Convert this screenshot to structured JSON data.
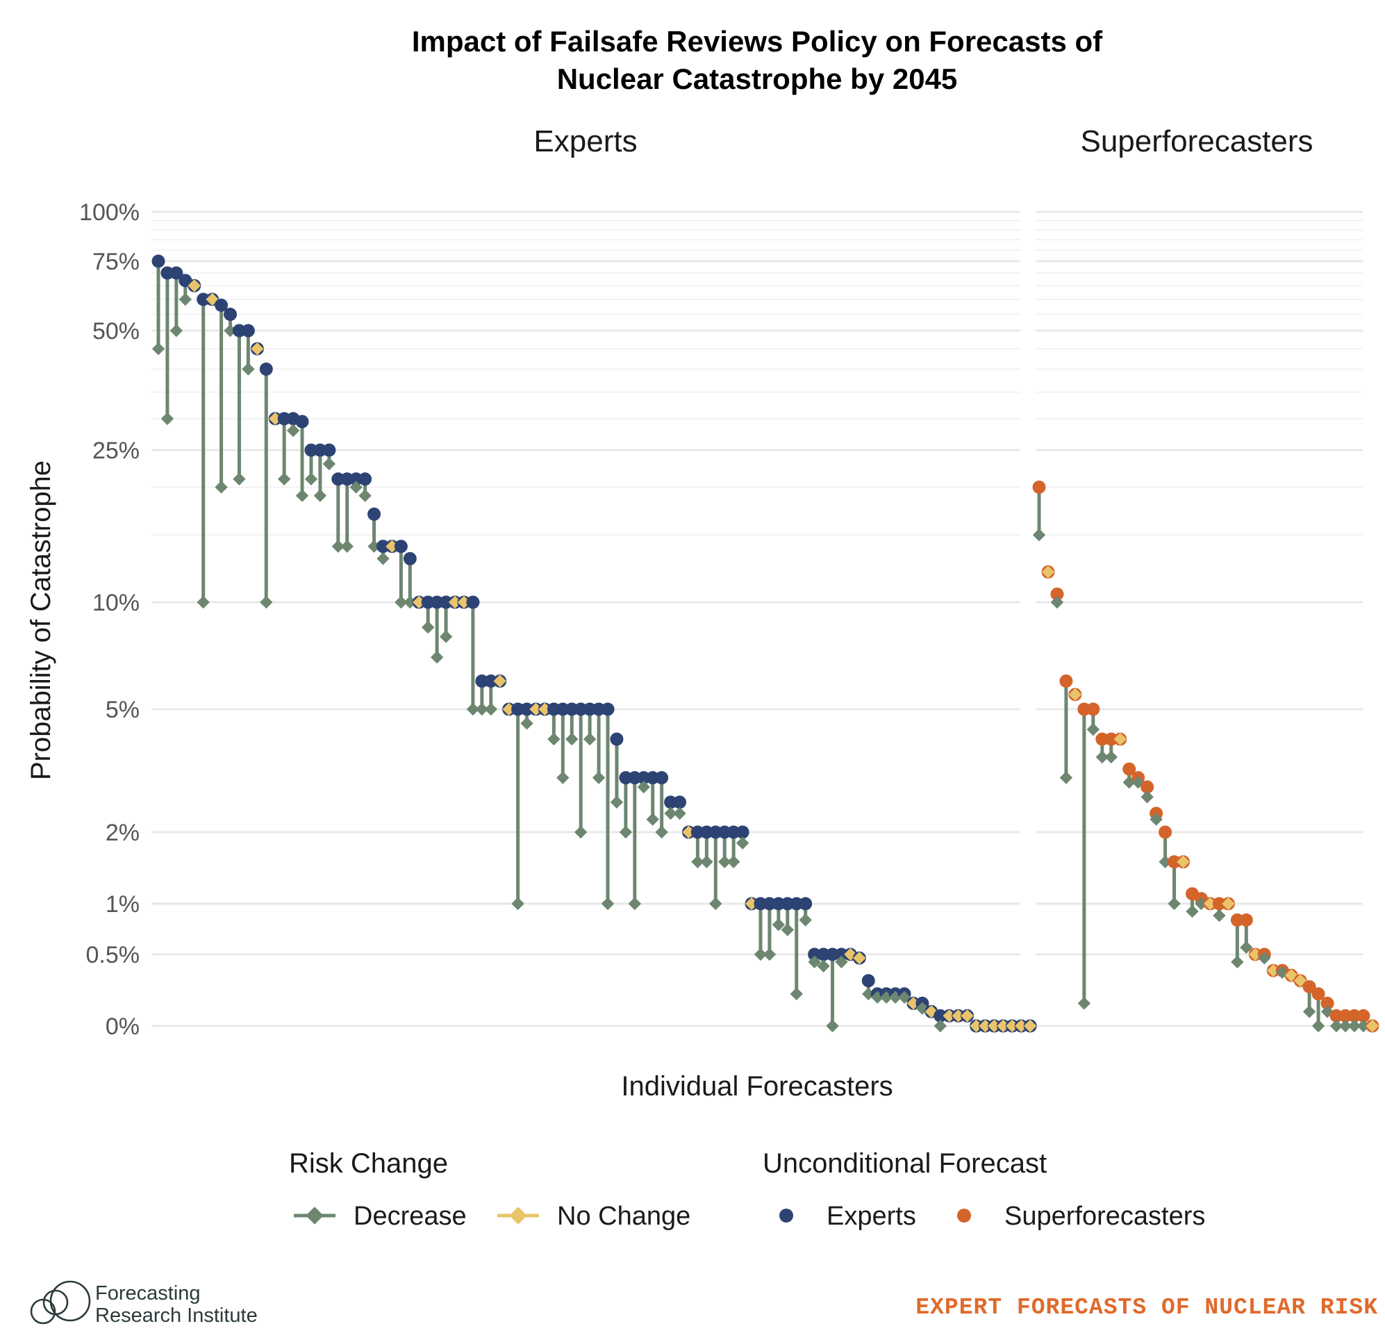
{
  "colors": {
    "decrease": "#6d8670",
    "no_change": "#e9c46a",
    "experts": "#2d4373",
    "superforecasters": "#d4642a",
    "source": "#e06a2c"
  },
  "chart_data": {
    "type": "dumbbell",
    "title_lines": [
      "Impact of Failsafe Reviews Policy on Forecasts of",
      "Nuclear Catastrophe by 2045"
    ],
    "xlabel": "Individual Forecasters",
    "ylabel": "Probability of Catastrophe",
    "y_scale": "transformed (compressed near 0)",
    "yticks": [
      {
        "value": 0,
        "label": "0%"
      },
      {
        "value": 0.5,
        "label": "0.5%"
      },
      {
        "value": 1,
        "label": "1%"
      },
      {
        "value": 2,
        "label": "2%"
      },
      {
        "value": 5,
        "label": "5%"
      },
      {
        "value": 10,
        "label": "10%"
      },
      {
        "value": 25,
        "label": "25%"
      },
      {
        "value": 50,
        "label": "50%"
      },
      {
        "value": 75,
        "label": "75%"
      },
      {
        "value": 100,
        "label": "100%"
      }
    ],
    "ylim": [
      0,
      100
    ],
    "grid": true,
    "legend_position": "bottom",
    "legend": {
      "risk_change": {
        "title": "Risk Change",
        "items": [
          "Decrease",
          "No Change"
        ]
      },
      "unconditional": {
        "title": "Unconditional Forecast",
        "items": [
          "Experts",
          "Superforecasters"
        ]
      }
    },
    "panels": [
      {
        "name": "Experts",
        "unconditional_series": "Experts",
        "forecasters": [
          {
            "u": 75,
            "c": 45
          },
          {
            "u": 70,
            "c": 30
          },
          {
            "u": 70,
            "c": 50
          },
          {
            "u": 67,
            "c": 60
          },
          {
            "u": 65,
            "c": 65
          },
          {
            "u": 60,
            "c": 10
          },
          {
            "u": 60,
            "c": 60
          },
          {
            "u": 58,
            "c": 20
          },
          {
            "u": 55,
            "c": 50
          },
          {
            "u": 50,
            "c": 21
          },
          {
            "u": 50,
            "c": 40
          },
          {
            "u": 45,
            "c": 45
          },
          {
            "u": 40,
            "c": 10
          },
          {
            "u": 30,
            "c": 30
          },
          {
            "u": 30,
            "c": 21
          },
          {
            "u": 30,
            "c": 28
          },
          {
            "u": 29.5,
            "c": 19
          },
          {
            "u": 25,
            "c": 21
          },
          {
            "u": 25,
            "c": 19
          },
          {
            "u": 25,
            "c": 23
          },
          {
            "u": 21,
            "c": 14
          },
          {
            "u": 21,
            "c": 14
          },
          {
            "u": 21,
            "c": 20
          },
          {
            "u": 21,
            "c": 19
          },
          {
            "u": 17,
            "c": 14
          },
          {
            "u": 14,
            "c": 13
          },
          {
            "u": 14,
            "c": 14
          },
          {
            "u": 14,
            "c": 10
          },
          {
            "u": 13,
            "c": 10
          },
          {
            "u": 10,
            "c": 10
          },
          {
            "u": 10,
            "c": 8.5
          },
          {
            "u": 10,
            "c": 7
          },
          {
            "u": 10,
            "c": 8
          },
          {
            "u": 10,
            "c": 10
          },
          {
            "u": 10,
            "c": 10
          },
          {
            "u": 10,
            "c": 5
          },
          {
            "u": 6,
            "c": 5
          },
          {
            "u": 6,
            "c": 5
          },
          {
            "u": 6,
            "c": 6
          },
          {
            "u": 5,
            "c": 5
          },
          {
            "u": 5,
            "c": 1
          },
          {
            "u": 5,
            "c": 4.5
          },
          {
            "u": 5,
            "c": 5
          },
          {
            "u": 5,
            "c": 5
          },
          {
            "u": 5,
            "c": 4
          },
          {
            "u": 5,
            "c": 3
          },
          {
            "u": 5,
            "c": 4
          },
          {
            "u": 5,
            "c": 2
          },
          {
            "u": 5,
            "c": 4
          },
          {
            "u": 5,
            "c": 3
          },
          {
            "u": 5,
            "c": 1
          },
          {
            "u": 4,
            "c": 2.5
          },
          {
            "u": 3,
            "c": 2
          },
          {
            "u": 3,
            "c": 1
          },
          {
            "u": 3,
            "c": 2.8
          },
          {
            "u": 3,
            "c": 2.2
          },
          {
            "u": 3,
            "c": 2
          },
          {
            "u": 2.5,
            "c": 2.3
          },
          {
            "u": 2.5,
            "c": 2.3
          },
          {
            "u": 2,
            "c": 2
          },
          {
            "u": 2,
            "c": 1.5
          },
          {
            "u": 2,
            "c": 1.5
          },
          {
            "u": 2,
            "c": 1
          },
          {
            "u": 2,
            "c": 1.5
          },
          {
            "u": 2,
            "c": 1.5
          },
          {
            "u": 2,
            "c": 1.8
          },
          {
            "u": 1,
            "c": 1
          },
          {
            "u": 1,
            "c": 0.5
          },
          {
            "u": 1,
            "c": 0.5
          },
          {
            "u": 1,
            "c": 0.75
          },
          {
            "u": 1,
            "c": 0.7
          },
          {
            "u": 1,
            "c": 0.1
          },
          {
            "u": 1,
            "c": 0.8
          },
          {
            "u": 0.5,
            "c": 0.4
          },
          {
            "u": 0.5,
            "c": 0.35
          },
          {
            "u": 0.5,
            "c": 0
          },
          {
            "u": 0.5,
            "c": 0.4
          },
          {
            "u": 0.5,
            "c": 0.5
          },
          {
            "u": 0.45,
            "c": 0.45
          },
          {
            "u": 0.2,
            "c": 0.1
          },
          {
            "u": 0.1,
            "c": 0.08
          },
          {
            "u": 0.1,
            "c": 0.08
          },
          {
            "u": 0.1,
            "c": 0.08
          },
          {
            "u": 0.1,
            "c": 0.08
          },
          {
            "u": 0.05,
            "c": 0.05
          },
          {
            "u": 0.05,
            "c": 0.03
          },
          {
            "u": 0.02,
            "c": 0.02
          },
          {
            "u": 0.01,
            "c": 0
          },
          {
            "u": 0.01,
            "c": 0.01
          },
          {
            "u": 0.01,
            "c": 0.01
          },
          {
            "u": 0.01,
            "c": 0.01
          },
          {
            "u": 0,
            "c": 0
          },
          {
            "u": 0,
            "c": 0
          },
          {
            "u": 0,
            "c": 0
          },
          {
            "u": 0,
            "c": 0
          },
          {
            "u": 0,
            "c": 0
          },
          {
            "u": 0,
            "c": 0
          },
          {
            "u": 0,
            "c": 0
          }
        ]
      },
      {
        "name": "Superforecasters",
        "unconditional_series": "Superforecasters",
        "forecasters": [
          {
            "u": 20,
            "c": 15
          },
          {
            "u": 12,
            "c": 12
          },
          {
            "u": 10.5,
            "c": 10
          },
          {
            "u": 6,
            "c": 3
          },
          {
            "u": 5.5,
            "c": 5.5
          },
          {
            "u": 5,
            "c": 0.05
          },
          {
            "u": 5,
            "c": 4.3
          },
          {
            "u": 4,
            "c": 3.5
          },
          {
            "u": 4,
            "c": 3.5
          },
          {
            "u": 4,
            "c": 4
          },
          {
            "u": 3.2,
            "c": 2.9
          },
          {
            "u": 3,
            "c": 2.9
          },
          {
            "u": 2.8,
            "c": 2.6
          },
          {
            "u": 2.3,
            "c": 2.2
          },
          {
            "u": 2,
            "c": 1.5
          },
          {
            "u": 1.5,
            "c": 1
          },
          {
            "u": 1.5,
            "c": 1.5
          },
          {
            "u": 1.1,
            "c": 0.9
          },
          {
            "u": 1.05,
            "c": 1
          },
          {
            "u": 1,
            "c": 1
          },
          {
            "u": 1,
            "c": 0.85
          },
          {
            "u": 1,
            "c": 1
          },
          {
            "u": 0.8,
            "c": 0.4
          },
          {
            "u": 0.8,
            "c": 0.55
          },
          {
            "u": 0.5,
            "c": 0.5
          },
          {
            "u": 0.5,
            "c": 0.45
          },
          {
            "u": 0.3,
            "c": 0.3
          },
          {
            "u": 0.3,
            "c": 0.28
          },
          {
            "u": 0.25,
            "c": 0.25
          },
          {
            "u": 0.2,
            "c": 0.2
          },
          {
            "u": 0.15,
            "c": 0.02
          },
          {
            "u": 0.1,
            "c": 0
          },
          {
            "u": 0.05,
            "c": 0.02
          },
          {
            "u": 0.01,
            "c": 0
          },
          {
            "u": 0.01,
            "c": 0
          },
          {
            "u": 0.01,
            "c": 0
          },
          {
            "u": 0.01,
            "c": 0
          },
          {
            "u": 0,
            "c": 0
          }
        ]
      }
    ]
  },
  "branding": {
    "logo_line1": "Forecasting",
    "logo_line2": "Research Institute",
    "source": "EXPERT FORECASTS OF NUCLEAR RISK"
  }
}
